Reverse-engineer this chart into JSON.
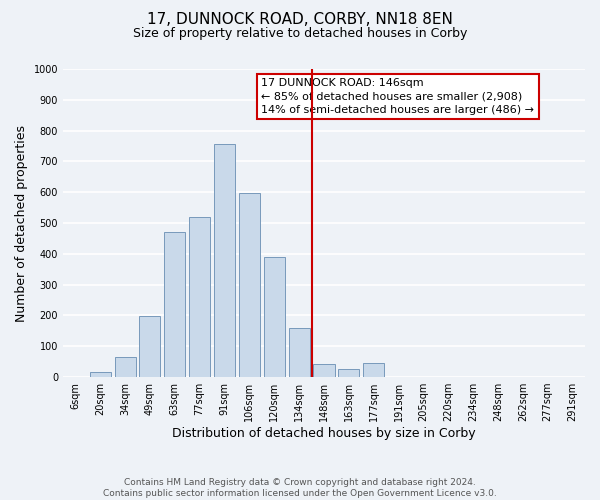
{
  "title": "17, DUNNOCK ROAD, CORBY, NN18 8EN",
  "subtitle": "Size of property relative to detached houses in Corby",
  "xlabel": "Distribution of detached houses by size in Corby",
  "ylabel": "Number of detached properties",
  "bar_labels": [
    "6sqm",
    "20sqm",
    "34sqm",
    "49sqm",
    "63sqm",
    "77sqm",
    "91sqm",
    "106sqm",
    "120sqm",
    "134sqm",
    "148sqm",
    "163sqm",
    "177sqm",
    "191sqm",
    "205sqm",
    "220sqm",
    "234sqm",
    "248sqm",
    "262sqm",
    "277sqm",
    "291sqm"
  ],
  "bar_heights": [
    0,
    15,
    65,
    197,
    470,
    518,
    756,
    598,
    390,
    160,
    43,
    27,
    47,
    0,
    0,
    0,
    0,
    0,
    0,
    0,
    0
  ],
  "bar_color": "#c9d9ea",
  "bar_edge_color": "#7799bb",
  "vline_color": "#cc0000",
  "annotation_box_text": "17 DUNNOCK ROAD: 146sqm\n← 85% of detached houses are smaller (2,908)\n14% of semi-detached houses are larger (486) →",
  "ylim": [
    0,
    1000
  ],
  "yticks": [
    0,
    100,
    200,
    300,
    400,
    500,
    600,
    700,
    800,
    900,
    1000
  ],
  "footer_line1": "Contains HM Land Registry data © Crown copyright and database right 2024.",
  "footer_line2": "Contains public sector information licensed under the Open Government Licence v3.0.",
  "bg_color": "#eef2f7",
  "grid_color": "#ffffff",
  "title_fontsize": 11,
  "subtitle_fontsize": 9,
  "axis_label_fontsize": 9,
  "tick_fontsize": 7,
  "annotation_fontsize": 8,
  "footer_fontsize": 6.5
}
